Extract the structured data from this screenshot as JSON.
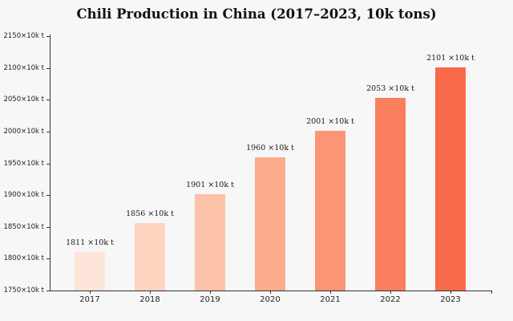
{
  "page": {
    "background_color": "#f8f7f8",
    "axis_color": "#333333",
    "text_color": "#1f1f1f"
  },
  "chart_data": {
    "type": "bar",
    "title": "Chili Production in China (2017–2023, 10k tons)",
    "categories": [
      "2017",
      "2018",
      "2019",
      "2020",
      "2021",
      "2022",
      "2023"
    ],
    "values": [
      1811,
      1856,
      1901,
      1960,
      2001,
      2053,
      2101
    ],
    "bar_labels": [
      "1811 ×10k t",
      "1856 ×10k t",
      "1901 ×10k t",
      "1960 ×10k t",
      "2001 ×10k t",
      "2053 ×10k t",
      "2101 ×10k t"
    ],
    "bar_colors": [
      "#fde5d9",
      "#fdd4c0",
      "#fcc2a7",
      "#fcab8b",
      "#fc9576",
      "#fa7f5e",
      "#f96a4a"
    ],
    "unit_suffix": "×10k t",
    "y_ticks": [
      1750,
      1800,
      1850,
      1900,
      1950,
      2000,
      2050,
      2100,
      2150
    ],
    "y_tick_labels": [
      "1750×10k t",
      "1800×10k t",
      "1850×10k t",
      "1900×10k t",
      "1950×10k t",
      "2000×10k t",
      "2050×10k t",
      "2100×10k t",
      "2150×10k t"
    ],
    "ylim": [
      1750,
      2150
    ],
    "xlabel": "",
    "ylabel": "",
    "grid": "off",
    "legend": "none"
  }
}
